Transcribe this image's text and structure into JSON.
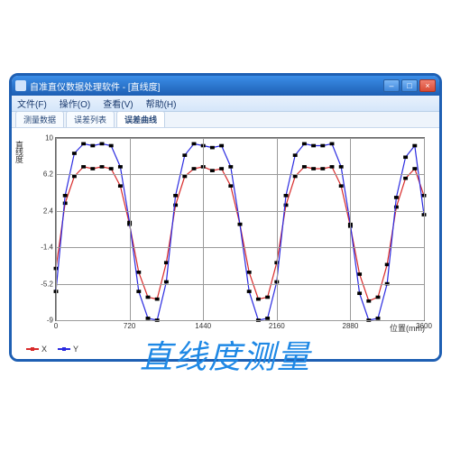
{
  "window": {
    "title": "自准直仪数据处理软件 - [直线度]",
    "menus": [
      "文件(F)",
      "操作(O)",
      "查看(V)",
      "帮助(H)"
    ],
    "tabs": [
      "测量数据",
      "误差列表",
      "误差曲线"
    ],
    "active_tab": 2,
    "buttons": {
      "min": "–",
      "max": "□",
      "close": "×"
    }
  },
  "chart": {
    "type": "line",
    "xlabel": "位置(mm)",
    "ylabel": "直线度",
    "xlim": [
      0,
      3600
    ],
    "ylim": [
      -9,
      10
    ],
    "xticks": [
      0,
      720,
      1440,
      2160,
      2880,
      3600
    ],
    "yticks": [
      -9,
      -5.2,
      -1.4,
      2.4,
      6.2,
      10
    ],
    "grid_color": "#9a9a9a",
    "background_color": "#ffffff",
    "series": [
      {
        "name": "X",
        "color": "#d82a2a",
        "marker_color": "#000000",
        "line_width": 1.2,
        "x": [
          0,
          90,
          180,
          270,
          360,
          450,
          540,
          630,
          720,
          810,
          900,
          990,
          1080,
          1170,
          1260,
          1350,
          1440,
          1530,
          1620,
          1710,
          1800,
          1890,
          1980,
          2070,
          2160,
          2250,
          2340,
          2430,
          2520,
          2610,
          2700,
          2790,
          2880,
          2970,
          3060,
          3150,
          3240,
          3330,
          3420,
          3510,
          3600
        ],
        "y": [
          -3.6,
          3.2,
          6.0,
          7.0,
          6.8,
          7.0,
          6.8,
          5.0,
          1.0,
          -4.0,
          -6.6,
          -6.8,
          -3.0,
          3.0,
          6.0,
          6.8,
          7.0,
          6.6,
          6.8,
          5.0,
          1.0,
          -4.0,
          -6.8,
          -6.6,
          -3.0,
          3.0,
          6.0,
          7.0,
          6.8,
          6.8,
          7.0,
          5.0,
          0.8,
          -4.2,
          -7.0,
          -6.6,
          -3.2,
          2.8,
          5.8,
          6.8,
          4.0
        ]
      },
      {
        "name": "Y",
        "color": "#2a2ae0",
        "marker_color": "#000000",
        "line_width": 1.2,
        "x": [
          0,
          90,
          180,
          270,
          360,
          450,
          540,
          630,
          720,
          810,
          900,
          990,
          1080,
          1170,
          1260,
          1350,
          1440,
          1530,
          1620,
          1710,
          1800,
          1890,
          1980,
          2070,
          2160,
          2250,
          2340,
          2430,
          2520,
          2610,
          2700,
          2790,
          2880,
          2970,
          3060,
          3150,
          3240,
          3330,
          3420,
          3510,
          3600
        ],
        "y": [
          -6.0,
          4.0,
          8.4,
          9.4,
          9.2,
          9.4,
          9.2,
          7.0,
          1.2,
          -6.0,
          -8.8,
          -9.0,
          -5.0,
          4.0,
          8.2,
          9.4,
          9.2,
          9.0,
          9.2,
          7.0,
          1.0,
          -6.0,
          -9.0,
          -8.8,
          -5.0,
          4.0,
          8.2,
          9.4,
          9.2,
          9.2,
          9.4,
          7.0,
          1.0,
          -6.2,
          -9.0,
          -8.8,
          -5.2,
          3.8,
          8.0,
          9.2,
          2.0
        ]
      }
    ],
    "label_fontsize": 9,
    "tick_fontsize": 8
  },
  "legend": {
    "items": [
      "X",
      "Y"
    ]
  },
  "caption": "直线度测量"
}
